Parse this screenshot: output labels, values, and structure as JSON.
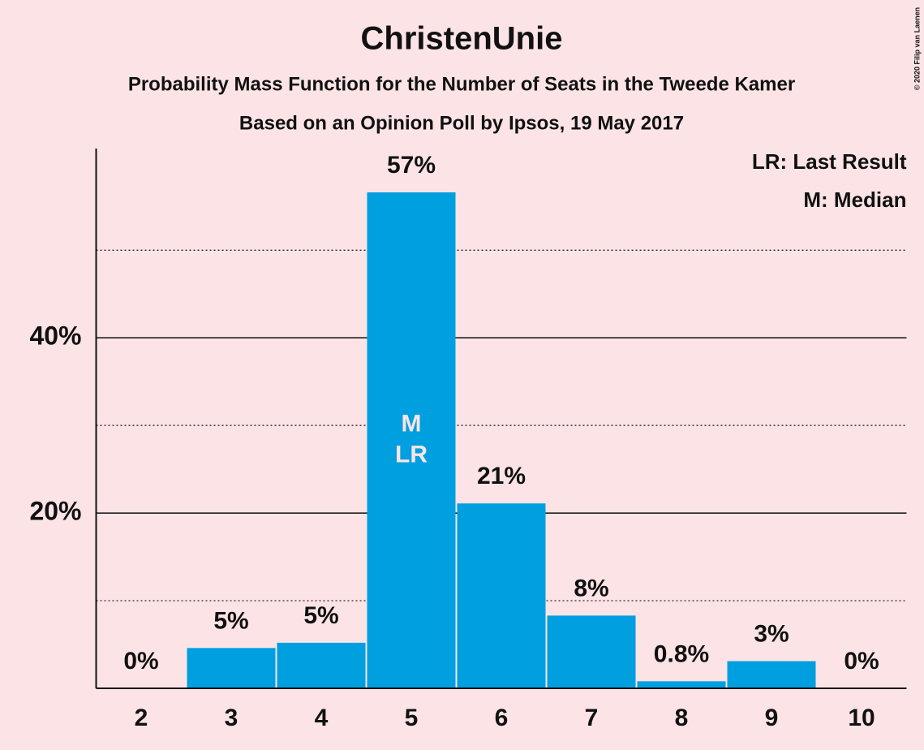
{
  "chart_data": {
    "type": "bar",
    "title": "ChristenUnie",
    "subtitle": "Probability Mass Function for the Number of Seats in the Tweede Kamer",
    "subtitle2": "Based on an Opinion Poll by Ipsos, 19 May 2017",
    "categories": [
      "2",
      "3",
      "4",
      "5",
      "6",
      "7",
      "8",
      "9",
      "10"
    ],
    "values": [
      0,
      4.6,
      5.2,
      56.6,
      21.1,
      8.3,
      0.8,
      3.1,
      0
    ],
    "value_labels": [
      "0%",
      "5%",
      "5%",
      "57%",
      "21%",
      "8%",
      "0.8%",
      "3%",
      "0%"
    ],
    "color": "#009fe0",
    "ylim": [
      0,
      61.6
    ],
    "yticks": [
      {
        "value": 20,
        "label": "20%"
      },
      {
        "value": 40,
        "label": "40%"
      }
    ],
    "minor_yticks": [
      10,
      30,
      50
    ],
    "grid": true,
    "markers": [
      {
        "at": "5",
        "labels": [
          "M",
          "LR"
        ]
      }
    ],
    "legend": [
      "LR: Last Result",
      "M: Median"
    ],
    "legend_position": "upper right",
    "credit": "© 2020 Filip van Laenen"
  }
}
